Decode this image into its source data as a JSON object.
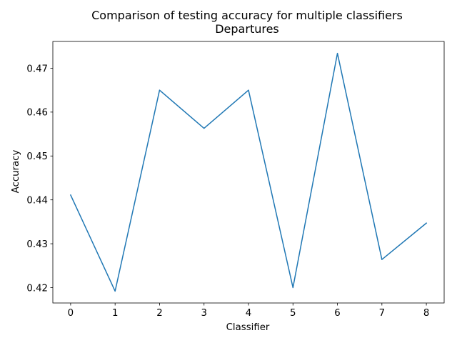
{
  "chart_data": {
    "type": "line",
    "title": "Comparison of testing accuracy for multiple classifiers",
    "subtitle": "Departures",
    "xlabel": "Classifier",
    "ylabel": "Accuracy",
    "x": [
      0,
      1,
      2,
      3,
      4,
      5,
      6,
      7,
      8
    ],
    "series": [
      {
        "values": [
          0.4411,
          0.4192,
          0.465,
          0.4563,
          0.465,
          0.42,
          0.4734,
          0.4264,
          0.4347
        ],
        "color": "#1f77b4"
      }
    ],
    "x_ticks": [
      "0",
      "1",
      "2",
      "3",
      "4",
      "5",
      "6",
      "7",
      "8"
    ],
    "y_ticks": [
      "0.42",
      "0.43",
      "0.44",
      "0.45",
      "0.46",
      "0.47"
    ],
    "xlim": [
      -0.4,
      8.4
    ],
    "ylim": [
      0.4165,
      0.4761
    ],
    "grid": false,
    "legend": "none"
  }
}
